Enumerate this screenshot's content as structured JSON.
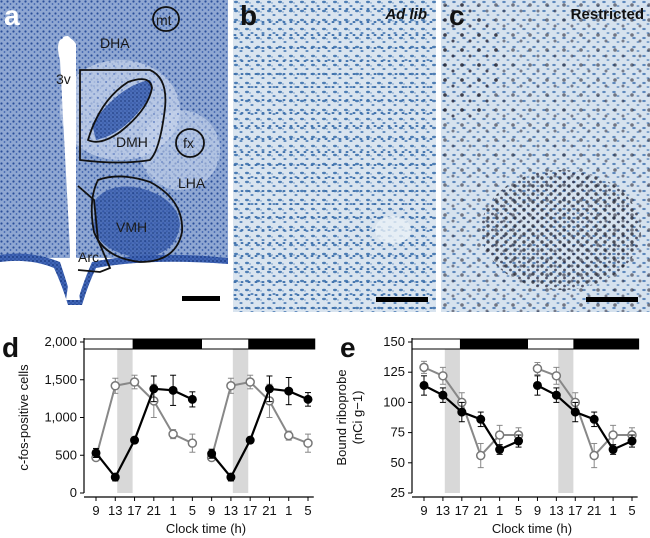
{
  "panels": {
    "a": {
      "letter": "a",
      "regions": [
        "DHA",
        "mt",
        "3v",
        "DMH",
        "fx",
        "LHA",
        "VMH",
        "Arc"
      ]
    },
    "b": {
      "letter": "b",
      "condition": "Ad lib"
    },
    "c": {
      "letter": "c",
      "condition": "Restricted"
    },
    "d": {
      "letter": "d"
    },
    "e": {
      "letter": "e"
    }
  },
  "colors": {
    "nissl_bg": "#cfd9e6",
    "nissl_dense": "#2b4f9b",
    "stain_bg": "#d7e3ee",
    "stain_cells": "#3d6fa8",
    "fos_nuclei": "#1c1c2a",
    "black_series": "#000000",
    "gray_series": "#888888",
    "shade": "#d8d8d8"
  },
  "chart_data": [
    {
      "type": "line",
      "panel": "d",
      "ylabel": "c-fos-positive cells",
      "xlabel": "Clock time (h)",
      "x": [
        "9",
        "13",
        "17",
        "21",
        "1",
        "5",
        "9",
        "13",
        "17",
        "21",
        "1",
        "5"
      ],
      "ylim": [
        0,
        2000
      ],
      "yticks": [
        "0",
        "500",
        "1,000",
        "1,500",
        "2,000"
      ],
      "ytick_values": [
        0,
        500,
        1000,
        1500,
        2000
      ],
      "light_dark_bar": [
        "light",
        "light",
        "dark",
        "dark",
        "dark",
        "dark",
        "light",
        "light",
        "dark",
        "dark",
        "dark",
        "dark"
      ],
      "shaded_ranges": [
        [
          13,
          17
        ],
        [
          13,
          17
        ]
      ],
      "series": [
        {
          "marker": "filled",
          "values": [
            530,
            210,
            700,
            1380,
            1360,
            1240,
            520,
            210,
            700,
            1380,
            1350,
            1240
          ],
          "errors": [
            60,
            50,
            40,
            170,
            200,
            100,
            60,
            50,
            40,
            170,
            180,
            90
          ]
        },
        {
          "marker": "open",
          "values": [
            470,
            1420,
            1470,
            1220,
            780,
            660,
            470,
            1420,
            1470,
            1220,
            760,
            660
          ],
          "errors": [
            40,
            100,
            90,
            220,
            60,
            120,
            40,
            100,
            90,
            220,
            60,
            120
          ]
        }
      ]
    },
    {
      "type": "line",
      "panel": "e",
      "ylabel": "Bound riboprobe",
      "ylabel_unit": "(nCi g−1)",
      "xlabel": "Clock time (h)",
      "x": [
        "9",
        "13",
        "17",
        "21",
        "1",
        "5",
        "9",
        "13",
        "17",
        "21",
        "1",
        "5"
      ],
      "ylim": [
        25,
        150
      ],
      "yticks": [
        "25",
        "50",
        "75",
        "100",
        "125",
        "150"
      ],
      "ytick_values": [
        25,
        50,
        75,
        100,
        125,
        150
      ],
      "light_dark_bar": [
        "light",
        "light",
        "dark",
        "dark",
        "dark",
        "dark",
        "light",
        "light",
        "dark",
        "dark",
        "dark",
        "dark"
      ],
      "shaded_ranges": [
        [
          13,
          17
        ],
        [
          13,
          17
        ]
      ],
      "series": [
        {
          "marker": "filled",
          "values": [
            114,
            106,
            92,
            86,
            61,
            68,
            114,
            106,
            92,
            86,
            61,
            68
          ],
          "errors": [
            8,
            6,
            8,
            6,
            4,
            5,
            8,
            6,
            8,
            6,
            4,
            5
          ]
        },
        {
          "marker": "open",
          "values": [
            129,
            122,
            100,
            56,
            73,
            73,
            128,
            122,
            100,
            56,
            73,
            73
          ],
          "errors": [
            5,
            7,
            8,
            10,
            8,
            6,
            5,
            7,
            8,
            10,
            8,
            6
          ]
        }
      ]
    }
  ]
}
